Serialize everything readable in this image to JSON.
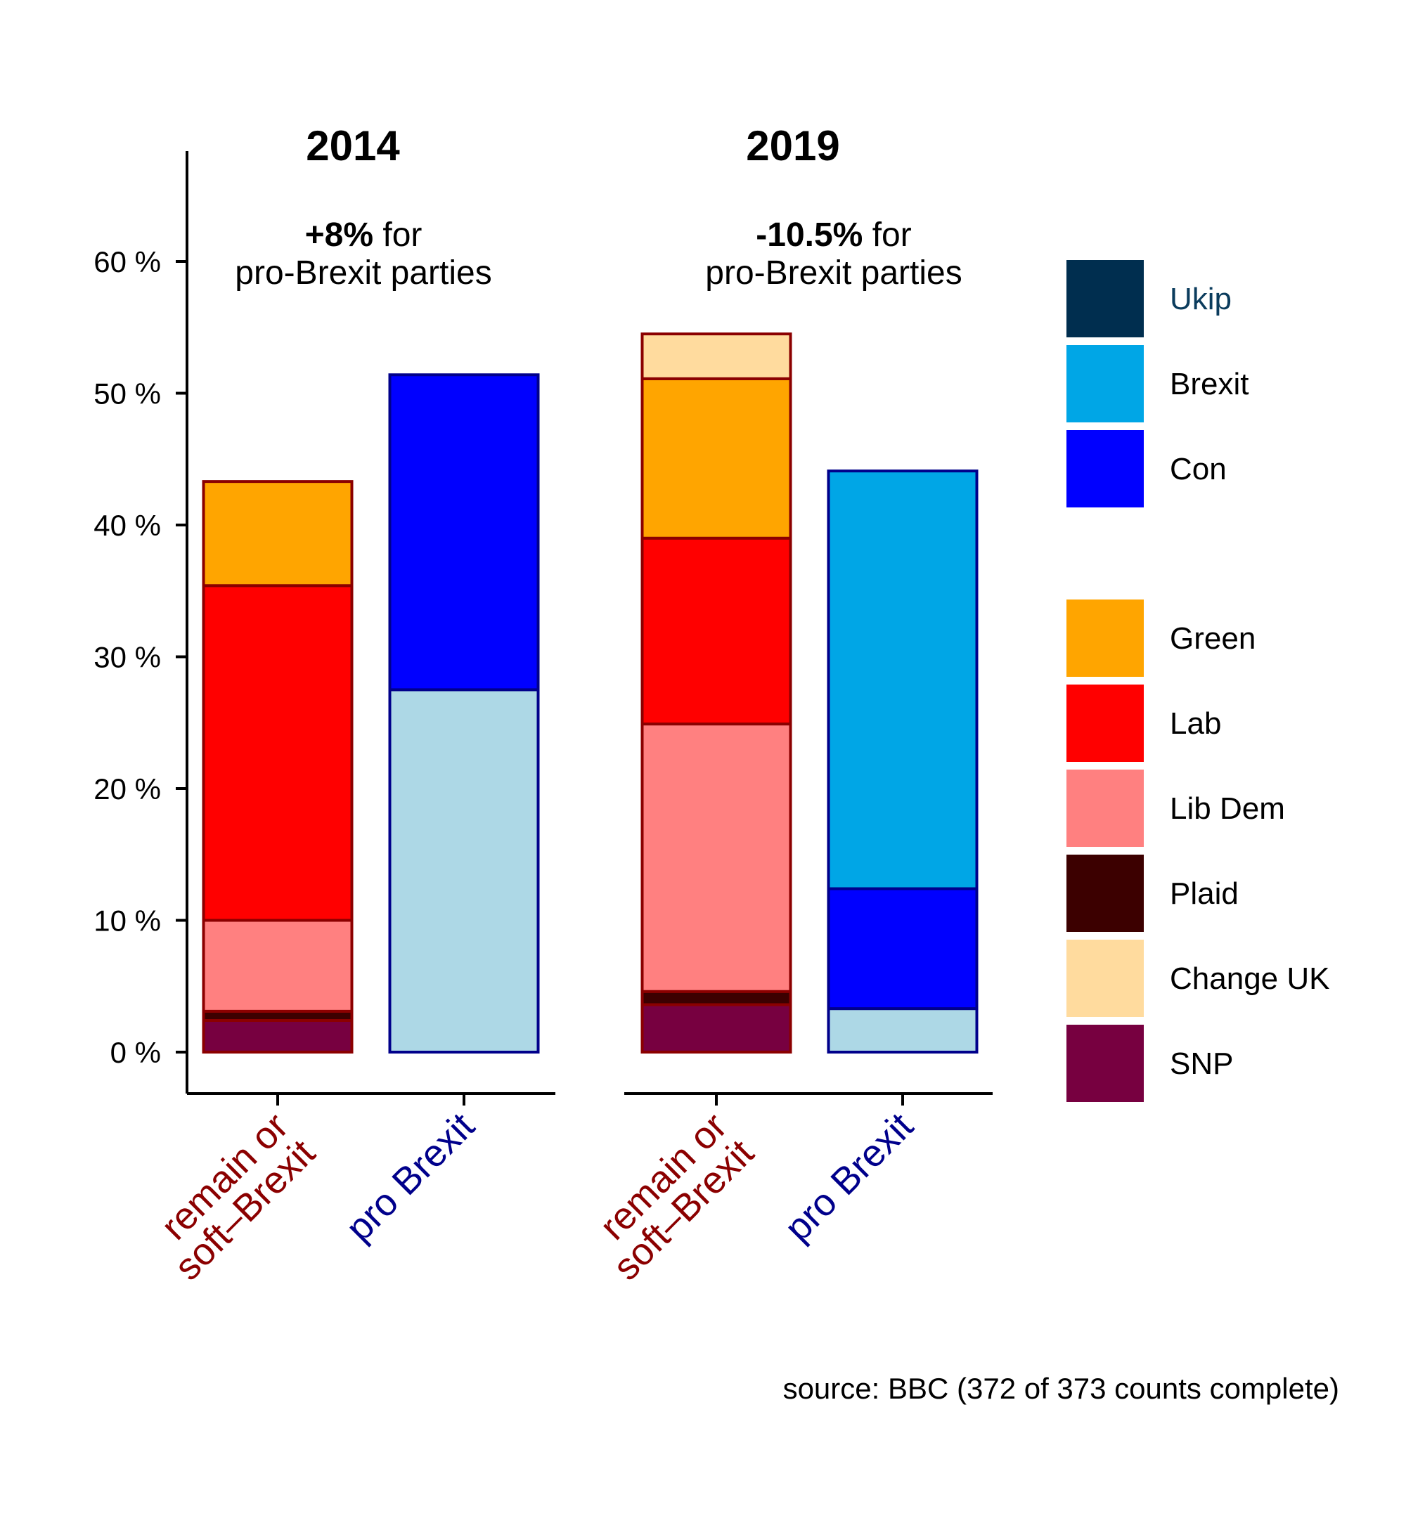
{
  "chart_data": {
    "type": "bar",
    "stacked": true,
    "title": "",
    "xlabel": "",
    "ylabel": "",
    "y_unit_suffix": " %",
    "ylim": [
      -3,
      68
    ],
    "y_ticks": [
      0,
      10,
      20,
      30,
      40,
      50,
      60
    ],
    "y_tick_labels": [
      "0 %",
      "10 %",
      "20 %",
      "30 %",
      "40 %",
      "50 %",
      "60 %"
    ],
    "grid": false,
    "legend_placement": "right",
    "categories": [
      "remain or\nsoft–Brexit",
      "pro Brexit"
    ],
    "panels": [
      {
        "title": "2014",
        "annotation_bold": "+8%",
        "annotation_rest": " for",
        "annotation_line2": "pro-Brexit parties",
        "bars": [
          {
            "category": "remain or\nsoft–Brexit",
            "group": "remain",
            "segments": [
              {
                "party": "SNP",
                "value": 2.4
              },
              {
                "party": "Plaid",
                "value": 0.7
              },
              {
                "party": "Lib Dem",
                "value": 6.9
              },
              {
                "party": "Lab",
                "value": 25.4
              },
              {
                "party": "Green",
                "value": 7.9
              }
            ]
          },
          {
            "category": "pro Brexit",
            "group": "pro",
            "segments": [
              {
                "party": "Ukip",
                "value": 27.5
              },
              {
                "party": "Con",
                "value": 23.9
              }
            ]
          }
        ]
      },
      {
        "title": "2019",
        "annotation_bold": "-10.5%",
        "annotation_rest": " for",
        "annotation_line2": "pro-Brexit parties",
        "bars": [
          {
            "category": "remain or\nsoft–Brexit",
            "group": "remain",
            "segments": [
              {
                "party": "SNP",
                "value": 3.6
              },
              {
                "party": "Plaid",
                "value": 1.0
              },
              {
                "party": "Lib Dem",
                "value": 20.3
              },
              {
                "party": "Lab",
                "value": 14.1
              },
              {
                "party": "Green",
                "value": 12.1
              },
              {
                "party": "Change UK",
                "value": 3.4
              }
            ]
          },
          {
            "category": "pro Brexit",
            "group": "pro",
            "segments": [
              {
                "party": "Ukip",
                "value": 3.3
              },
              {
                "party": "Con",
                "value": 9.1
              },
              {
                "party": "Brexit",
                "value": 31.7
              }
            ]
          }
        ]
      }
    ],
    "legend": {
      "pro": [
        "Ukip",
        "Brexit",
        "Con"
      ],
      "remain": [
        "Green",
        "Lab",
        "Lib Dem",
        "Plaid",
        "Change UK",
        "SNP"
      ]
    },
    "colors": {
      "Ukip_legend": "#002E4F",
      "Ukip_bar": "#ADD8E6",
      "Ukip_label": "#0B3C5D",
      "Brexit": "#00A6E6",
      "Con": "#0000FF",
      "Green": "#FFA500",
      "Lab": "#FF0000",
      "Lib Dem": "#FF8080",
      "Plaid": "#3C0000",
      "Change UK": "#FFDB9E",
      "SNP": "#770040",
      "remain_outline": "#8B0000",
      "pro_outline": "#00008B",
      "remain_label": "#8B0000",
      "pro_label": "#00008B",
      "axis": "#000000"
    }
  },
  "source": "source: BBC (372 of 373 counts complete)"
}
